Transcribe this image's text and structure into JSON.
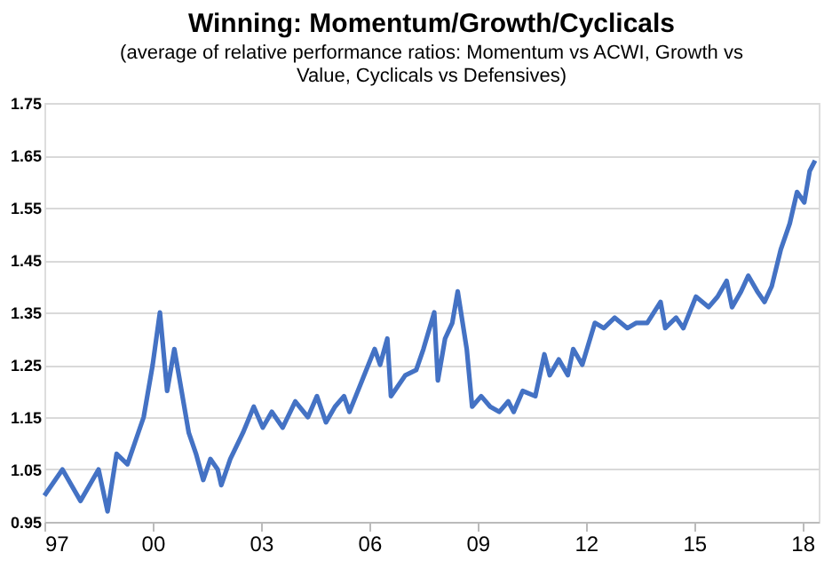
{
  "chart_data": {
    "type": "line",
    "title": "Winning: Momentum/Growth/Cyclicals",
    "subtitle": "(average of relative performance ratios: Momentum vs ACWI, Growth vs Value, Cyclicals vs Defensives)",
    "series": [
      {
        "color": "#4472c4",
        "x": [
          1997.0,
          1997.5,
          1998.0,
          1998.5,
          1998.75,
          1999.0,
          1999.3,
          1999.5,
          1999.75,
          2000.0,
          2000.2,
          2000.4,
          2000.6,
          2000.8,
          2001.0,
          2001.2,
          2001.4,
          2001.6,
          2001.8,
          2001.9,
          2002.15,
          2002.5,
          2002.8,
          2003.05,
          2003.3,
          2003.6,
          2003.95,
          2004.3,
          2004.55,
          2004.8,
          2005.05,
          2005.3,
          2005.45,
          2005.8,
          2006.15,
          2006.3,
          2006.5,
          2006.6,
          2007.0,
          2007.3,
          2007.5,
          2007.8,
          2007.9,
          2008.1,
          2008.3,
          2008.45,
          2008.7,
          2008.85,
          2009.1,
          2009.35,
          2009.6,
          2009.85,
          2010.0,
          2010.25,
          2010.6,
          2010.85,
          2011.0,
          2011.25,
          2011.5,
          2011.65,
          2011.9,
          2012.25,
          2012.5,
          2012.8,
          2013.15,
          2013.4,
          2013.7,
          2014.07,
          2014.2,
          2014.5,
          2014.7,
          2015.05,
          2015.4,
          2015.65,
          2015.9,
          2016.05,
          2016.3,
          2016.5,
          2016.75,
          2016.95,
          2017.15,
          2017.4,
          2017.65,
          2017.85,
          2018.05,
          2018.2,
          2018.35
        ],
        "values": [
          1.0,
          1.05,
          0.99,
          1.05,
          0.97,
          1.08,
          1.06,
          1.1,
          1.15,
          1.25,
          1.35,
          1.2,
          1.28,
          1.2,
          1.12,
          1.08,
          1.03,
          1.07,
          1.05,
          1.02,
          1.07,
          1.12,
          1.17,
          1.13,
          1.16,
          1.13,
          1.18,
          1.15,
          1.19,
          1.14,
          1.17,
          1.19,
          1.16,
          1.22,
          1.28,
          1.25,
          1.3,
          1.19,
          1.23,
          1.24,
          1.28,
          1.35,
          1.22,
          1.3,
          1.33,
          1.39,
          1.28,
          1.17,
          1.19,
          1.17,
          1.16,
          1.18,
          1.16,
          1.2,
          1.19,
          1.27,
          1.23,
          1.26,
          1.23,
          1.28,
          1.25,
          1.33,
          1.32,
          1.34,
          1.32,
          1.33,
          1.33,
          1.37,
          1.32,
          1.34,
          1.32,
          1.38,
          1.36,
          1.38,
          1.41,
          1.36,
          1.39,
          1.42,
          1.39,
          1.37,
          1.4,
          1.47,
          1.52,
          1.58,
          1.56,
          1.62,
          1.64
        ]
      }
    ],
    "xlim": [
      1997,
      2018.45
    ],
    "xticks": [
      {
        "value": 1997,
        "label": "97"
      },
      {
        "value": 2000,
        "label": "00"
      },
      {
        "value": 2003,
        "label": "03"
      },
      {
        "value": 2006,
        "label": "06"
      },
      {
        "value": 2009,
        "label": "09"
      },
      {
        "value": 2012,
        "label": "12"
      },
      {
        "value": 2015,
        "label": "15"
      },
      {
        "value": 2018,
        "label": "18"
      }
    ],
    "ylim": [
      0.95,
      1.75
    ],
    "yticks": [
      0.95,
      1.05,
      1.15,
      1.25,
      1.35,
      1.45,
      1.55,
      1.65,
      1.75
    ],
    "grid": "y",
    "line_style": "solid"
  }
}
